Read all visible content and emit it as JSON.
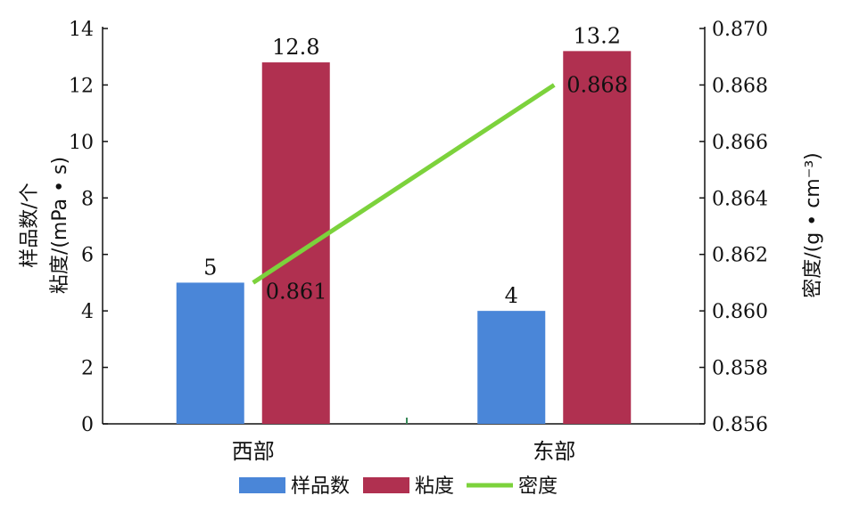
{
  "chart_data": {
    "type": "bar",
    "categories": [
      "西部",
      "东部"
    ],
    "series": [
      {
        "name": "样品数",
        "values": [
          5,
          4
        ],
        "color": "#4a86d8",
        "axis": "left",
        "kind": "bar"
      },
      {
        "name": "粘度",
        "values": [
          12.8,
          13.2
        ],
        "color": "#b03050",
        "axis": "left",
        "kind": "bar"
      },
      {
        "name": "密度",
        "values": [
          0.861,
          0.868
        ],
        "color": "#7cd23c",
        "axis": "right",
        "kind": "line"
      }
    ],
    "data_labels": {
      "样品数": [
        "5",
        "4"
      ],
      "粘度": [
        "12.8",
        "13.2"
      ],
      "密度": [
        "0.861",
        "0.868"
      ]
    },
    "ylabel_line1": "样品数/个",
    "ylabel_line2": "粘度/(mPa • s)",
    "y2label": "密度/(g • cm⁻³)",
    "ylim": [
      0,
      14
    ],
    "yticks": [
      "0",
      "2",
      "4",
      "6",
      "8",
      "10",
      "12",
      "14"
    ],
    "y2lim": [
      0.856,
      0.87
    ],
    "y2ticks": [
      "0.856",
      "0.858",
      "0.860",
      "0.862",
      "0.864",
      "0.866",
      "0.868",
      "0.870"
    ],
    "legend_position": "bottom",
    "grid": false
  }
}
